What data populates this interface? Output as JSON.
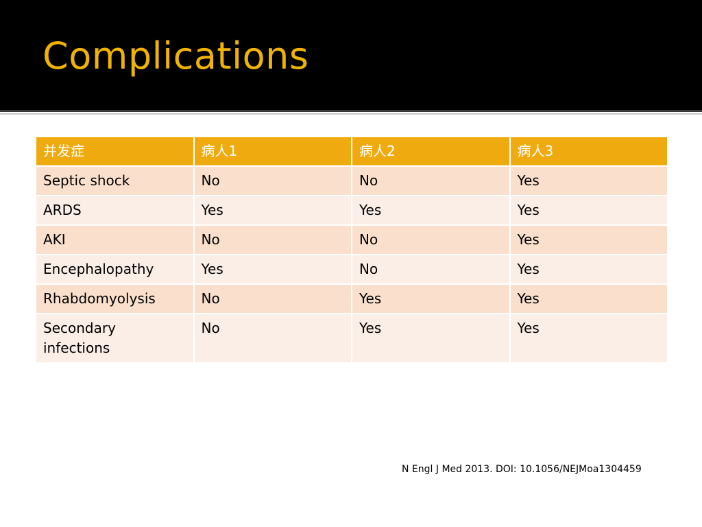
{
  "slide": {
    "title": "Complications",
    "citation": "N Engl J Med 2013. DOI: 10.1056/NEJMoa1304459"
  },
  "table": {
    "headers": [
      "并发症",
      "病人1",
      "病人2",
      "病人3"
    ],
    "rows": [
      [
        "Septic shock",
        "No",
        "No",
        "Yes"
      ],
      [
        "ARDS",
        "Yes",
        "Yes",
        "Yes"
      ],
      [
        "AKI",
        "No",
        "No",
        "Yes"
      ],
      [
        "Encephalopathy",
        "Yes",
        "No",
        "Yes"
      ],
      [
        "Rhabdomyolysis",
        "No",
        "Yes",
        "Yes"
      ],
      [
        "Secondary infections",
        "No",
        "Yes",
        "Yes"
      ]
    ]
  },
  "colors": {
    "title": "#f0b400",
    "title_background": "#000000",
    "header_background": "#efaa0f",
    "row_odd": "#f9dfcc",
    "row_even": "#fbeee6"
  }
}
